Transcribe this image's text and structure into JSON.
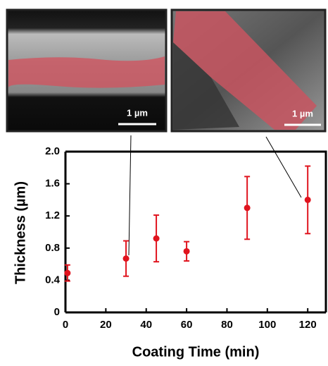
{
  "chart_data": {
    "type": "scatter",
    "x_label": "Coating Time (min)",
    "y_label": "Thickness (µm)",
    "x": [
      1,
      30,
      45,
      60,
      90,
      120
    ],
    "series": [
      {
        "color": "#e0141e",
        "values": [
          0.49,
          0.67,
          0.92,
          0.76,
          1.3,
          1.4
        ],
        "errors": [
          0.1,
          0.22,
          0.29,
          0.12,
          0.39,
          0.42
        ]
      }
    ],
    "xlim": [
      0,
      129
    ],
    "xticks": [
      0,
      20,
      40,
      60,
      80,
      100,
      120
    ],
    "ylim": [
      0,
      2
    ],
    "yticks": [
      0,
      0.4,
      0.8,
      1.2,
      1.6,
      {
        "value": 2,
        "label": "2.0"
      }
    ],
    "scale_bars": [
      "1 µm",
      "1 µm"
    ]
  }
}
